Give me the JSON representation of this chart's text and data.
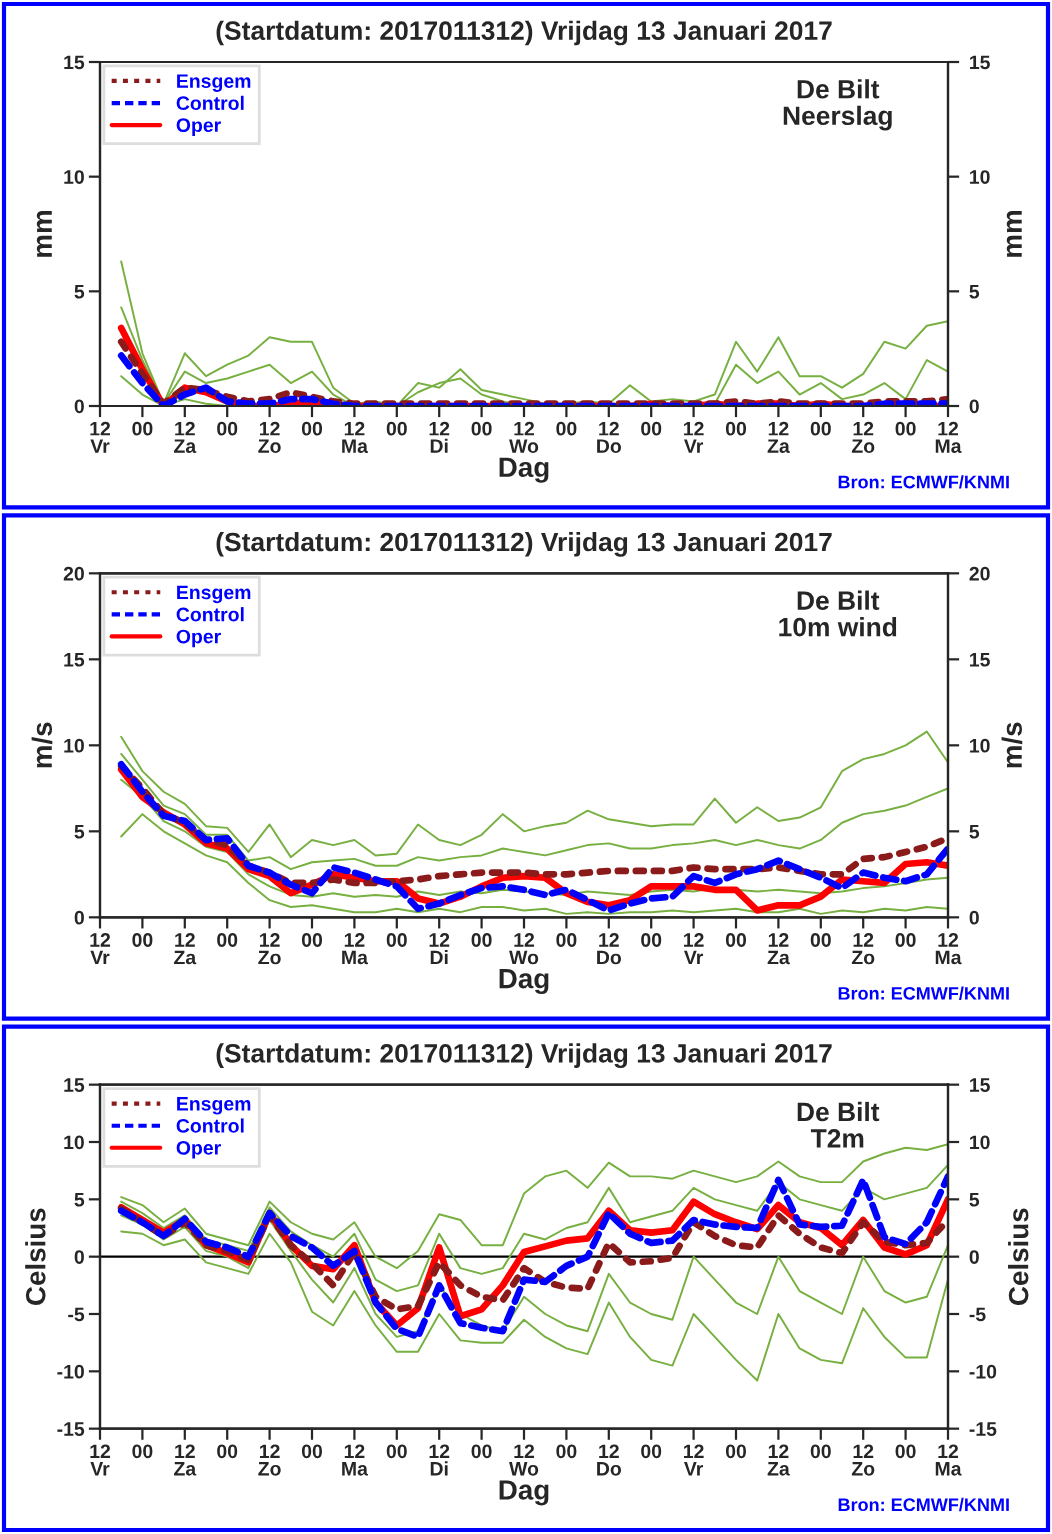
{
  "chart_data": [
    {
      "type": "line",
      "title": "(Startdatum: 2017011312) Vrijdag 13 Januari 2017",
      "xlabel": "Dag",
      "ylabel": "mm",
      "y2label": "mm",
      "annotations": [
        "De Bilt\nNeerslag",
        "Bron: ECMWF/KNMI"
      ],
      "categories": [
        "12\nVr",
        null,
        "00",
        null,
        "12\nZa",
        null,
        "00",
        null,
        "12\nZo",
        null,
        "00",
        null,
        "12\nMa",
        null,
        "00",
        null,
        "12\nDi",
        null,
        "00",
        null,
        "12\nWo",
        null,
        "00",
        null,
        "12\nDo",
        null,
        "00",
        null,
        "12\nVr",
        null,
        "00",
        null,
        "12\nZa",
        null,
        "00",
        null,
        "12\nZo",
        null,
        "00",
        null,
        "12\nMa"
      ],
      "ylim": [
        0,
        15
      ],
      "yticks": [
        0,
        5,
        10,
        15
      ],
      "y2lim": [
        0,
        15
      ],
      "y2ticks": [
        0,
        5,
        10,
        15
      ],
      "legend": "top left",
      "grid": false,
      "series": [
        {
          "color": "#77b041",
          "line_style": "solid",
          "values": [
            null,
            6.3,
            2.3,
            0.1,
            2.3,
            1.3,
            1.8,
            2.2,
            3.0,
            2.8,
            2.8,
            0.8,
            0.1,
            0.2,
            0,
            1.0,
            0.8,
            1.6,
            0.7,
            0.5,
            0.3,
            0.1,
            0.1,
            0.2,
            0.1,
            0.9,
            0.2,
            0.3,
            0.2,
            0.5,
            2.8,
            1.5,
            3.0,
            1.3,
            1.3,
            0.8,
            1.4,
            2.8,
            2.5,
            3.5,
            3.7
          ]
        },
        {
          "color": "#77b041",
          "line_style": "solid",
          "values": [
            null,
            4.3,
            2.0,
            0.1,
            1.5,
            1.0,
            1.2,
            1.5,
            1.8,
            1.0,
            1.5,
            0.5,
            0,
            0,
            0,
            0.6,
            1.0,
            1.2,
            0.5,
            0.2,
            0,
            0,
            0,
            0,
            0,
            0,
            0,
            0,
            0,
            0.1,
            1.8,
            1.0,
            1.5,
            0.5,
            1.0,
            0.3,
            0.5,
            1.0,
            0.3,
            2.0,
            1.5
          ]
        },
        {
          "color": "#77b041",
          "line_style": "solid",
          "values": [
            null,
            1.3,
            0.5,
            0,
            0.3,
            0.1,
            0,
            null,
            null,
            null,
            null,
            null,
            null,
            null,
            null,
            null,
            null,
            null,
            null,
            null,
            null,
            null,
            null,
            null,
            null,
            null,
            null,
            null,
            null,
            null,
            null,
            null,
            null,
            null,
            null,
            null,
            null,
            null,
            null,
            null,
            null
          ]
        },
        {
          "name": "Ensgem",
          "color": "#8b1a1a",
          "line_style": "dotted",
          "values": [
            null,
            2.8,
            1.4,
            0.1,
            0.8,
            0.7,
            0.4,
            0.2,
            0.3,
            0.6,
            0.4,
            0.2,
            0.1,
            0.1,
            0.1,
            0.1,
            0.1,
            0.1,
            0.1,
            0.1,
            0.1,
            0.1,
            0.1,
            0.1,
            0.1,
            0.1,
            0.1,
            0.1,
            0.1,
            0.1,
            0.2,
            0.1,
            0.2,
            0.1,
            0.1,
            0.1,
            0.1,
            0.2,
            0.2,
            0.2,
            0.3
          ]
        },
        {
          "name": "Control",
          "color": "#0000ff",
          "line_style": "dashed",
          "values": [
            null,
            2.2,
            1.0,
            0,
            0.5,
            0.8,
            0.2,
            0.1,
            0.1,
            0.3,
            0.3,
            0.1,
            0,
            null,
            null,
            null,
            null,
            null,
            null,
            null,
            null,
            null,
            null,
            null,
            null,
            null,
            null,
            null,
            null,
            null,
            null,
            null,
            null,
            null,
            null,
            null,
            0,
            0.1,
            0.1,
            0.1,
            0.1
          ]
        },
        {
          "name": "Oper",
          "color": "#ff0000",
          "line_style": "solid",
          "values": [
            null,
            3.4,
            1.6,
            0,
            0.8,
            0.6,
            0.2,
            0,
            0,
            0.1,
            0.2,
            0,
            0,
            0,
            0,
            0,
            0,
            0,
            0,
            0,
            0,
            0,
            0,
            0,
            0,
            0,
            0.1,
            0,
            0,
            0.1,
            0,
            0.1,
            0.1,
            0,
            0.1,
            0,
            0,
            0,
            0,
            0,
            0
          ]
        }
      ]
    },
    {
      "type": "line",
      "title": "(Startdatum: 2017011312) Vrijdag 13 Januari 2017",
      "xlabel": "Dag",
      "ylabel": "m/s",
      "y2label": "m/s",
      "annotations": [
        "De Bilt\n10m wind",
        "Bron: ECMWF/KNMI"
      ],
      "categories": [
        "12\nVr",
        null,
        "00",
        null,
        "12\nZa",
        null,
        "00",
        null,
        "12\nZo",
        null,
        "00",
        null,
        "12\nMa",
        null,
        "00",
        null,
        "12\nDi",
        null,
        "00",
        null,
        "12\nWo",
        null,
        "00",
        null,
        "12\nDo",
        null,
        "00",
        null,
        "12\nVr",
        null,
        "00",
        null,
        "12\nZa",
        null,
        "00",
        null,
        "12\nZo",
        null,
        "00",
        null,
        "12\nMa"
      ],
      "ylim": [
        0,
        20
      ],
      "yticks": [
        0,
        5,
        10,
        15,
        20
      ],
      "y2lim": [
        0,
        20
      ],
      "y2ticks": [
        0,
        5,
        10,
        15,
        20
      ],
      "legend": "top left",
      "grid": false,
      "series": [
        {
          "color": "#77b041",
          "line_style": "solid",
          "values": [
            null,
            10.5,
            8.5,
            7.3,
            6.6,
            5.3,
            5.2,
            3.8,
            5.4,
            3.5,
            4.5,
            4.2,
            4.5,
            3.6,
            3.7,
            5.4,
            4.5,
            4.2,
            4.8,
            6.0,
            5.0,
            5.3,
            5.5,
            6.2,
            5.7,
            5.5,
            5.3,
            5.4,
            5.4,
            6.9,
            5.5,
            6.4,
            5.6,
            5.8,
            6.4,
            8.5,
            9.2,
            9.5,
            10.0,
            10.8,
            9.0
          ]
        },
        {
          "color": "#77b041",
          "line_style": "solid",
          "values": [
            null,
            9.5,
            8.0,
            6.5,
            6.0,
            4.8,
            4.8,
            3.3,
            3.5,
            2.8,
            3.2,
            3.3,
            3.4,
            3.0,
            3.0,
            3.5,
            3.3,
            3.5,
            3.6,
            4.0,
            3.8,
            3.6,
            3.9,
            4.2,
            4.3,
            4.0,
            4.0,
            4.2,
            4.3,
            4.5,
            4.2,
            4.5,
            4.2,
            4.0,
            4.5,
            5.5,
            6.0,
            6.2,
            6.5,
            7.0,
            7.5
          ]
        },
        {
          "color": "#77b041",
          "line_style": "solid",
          "values": [
            null,
            8.0,
            7.0,
            5.6,
            5.0,
            4.1,
            3.8,
            2.5,
            1.8,
            1.3,
            1.2,
            1.4,
            1.2,
            1.3,
            1.2,
            1.5,
            1.3,
            1.5,
            1.4,
            1.6,
            1.5,
            1.4,
            1.3,
            1.5,
            1.4,
            1.3,
            1.5,
            1.6,
            1.5,
            1.7,
            1.6,
            1.5,
            1.6,
            1.5,
            1.4,
            1.5,
            1.7,
            1.8,
            2.0,
            2.2,
            2.3
          ]
        },
        {
          "color": "#77b041",
          "line_style": "solid",
          "values": [
            null,
            4.7,
            6.0,
            5.0,
            4.3,
            3.6,
            3.2,
            2.0,
            1.0,
            0.6,
            0.7,
            0.5,
            0.3,
            0.3,
            0.5,
            0.3,
            0.5,
            0.3,
            0.6,
            0.6,
            0.4,
            0.5,
            0.2,
            0.3,
            0.2,
            0.3,
            0.3,
            0.4,
            0.3,
            0.4,
            0.5,
            0.3,
            0.3,
            0.5,
            0.2,
            0.4,
            0.3,
            0.5,
            0.4,
            0.6,
            0.5
          ]
        },
        {
          "name": "Ensgem",
          "color": "#8b1a1a",
          "line_style": "dotted",
          "values": [
            null,
            8.8,
            7.5,
            6.0,
            5.5,
            4.5,
            4.2,
            3.0,
            2.6,
            2.0,
            2.0,
            2.2,
            2.0,
            2.0,
            2.1,
            2.2,
            2.4,
            2.5,
            2.6,
            2.6,
            2.6,
            2.5,
            2.5,
            2.6,
            2.7,
            2.7,
            2.7,
            2.7,
            2.9,
            2.8,
            2.8,
            2.8,
            2.9,
            2.7,
            2.5,
            2.5,
            3.4,
            3.5,
            3.8,
            4.1,
            4.6
          ]
        },
        {
          "name": "Control",
          "color": "#0000ff",
          "line_style": "dashed",
          "values": [
            null,
            8.9,
            7.3,
            5.9,
            5.6,
            4.5,
            4.6,
            3.0,
            2.6,
            1.9,
            1.4,
            2.9,
            2.6,
            2.2,
            1.8,
            0.5,
            0.8,
            1.3,
            1.7,
            1.8,
            1.6,
            1.3,
            1.6,
            1.0,
            0.4,
            0.8,
            1.1,
            1.2,
            2.4,
            2.0,
            2.5,
            2.8,
            3.3,
            2.8,
            2.3,
            1.7,
            2.6,
            2.3,
            2.1,
            2.5,
            4.0
          ]
        },
        {
          "name": "Oper",
          "color": "#ff0000",
          "line_style": "solid",
          "values": [
            null,
            8.6,
            7.0,
            6.1,
            5.4,
            4.3,
            4.0,
            2.8,
            2.4,
            1.4,
            1.9,
            2.5,
            2.3,
            2.1,
            2.1,
            1.1,
            0.8,
            1.2,
            1.8,
            2.3,
            2.4,
            2.3,
            1.4,
            0.9,
            0.7,
            1.0,
            1.8,
            1.8,
            1.8,
            1.6,
            1.6,
            0.4,
            0.7,
            0.7,
            1.2,
            2.2,
            2.1,
            2.0,
            3.1,
            3.2,
            3.0
          ]
        }
      ]
    },
    {
      "type": "line",
      "title": "(Startdatum: 2017011312) Vrijdag 13 Januari 2017",
      "xlabel": "Dag",
      "ylabel": "Celsius",
      "y2label": "Celsius",
      "annotations": [
        "De Bilt\nT2m",
        "Bron: ECMWF/KNMI"
      ],
      "categories": [
        "12\nVr",
        null,
        "00",
        null,
        "12\nZa",
        null,
        "00",
        null,
        "12\nZo",
        null,
        "00",
        null,
        "12\nMa",
        null,
        "00",
        null,
        "12\nDi",
        null,
        "00",
        null,
        "12\nWo",
        null,
        "00",
        null,
        "12\nDo",
        null,
        "00",
        null,
        "12\nVr",
        null,
        "00",
        null,
        "12\nZa",
        null,
        "00",
        null,
        "12\nZo",
        null,
        "00",
        null,
        "12\nMa"
      ],
      "ylim": [
        -15,
        15
      ],
      "yticks": [
        -15,
        -10,
        -5,
        0,
        5,
        10,
        15
      ],
      "y2lim": [
        -15,
        15
      ],
      "y2ticks": [
        -15,
        -10,
        -5,
        0,
        5,
        10,
        15
      ],
      "legend": "top left",
      "grid": false,
      "ref_lines": [
        {
          "axis": "y",
          "value": 0,
          "color": "#000000",
          "line_style": "solid"
        }
      ],
      "series": [
        {
          "color": "#77b041",
          "line_style": "solid",
          "values": [
            null,
            5.2,
            4.5,
            3,
            4.2,
            2,
            1.5,
            1,
            4.8,
            3,
            2,
            1.5,
            3,
            0,
            -1,
            0.5,
            3.7,
            3.2,
            1,
            1,
            5.5,
            7,
            7.5,
            6,
            8.2,
            7,
            7,
            6.8,
            7.5,
            7,
            6.5,
            7,
            8.3,
            7,
            6.5,
            6.5,
            8.3,
            9,
            9.5,
            9.3,
            9.8
          ]
        },
        {
          "color": "#77b041",
          "line_style": "solid",
          "values": [
            null,
            4.8,
            3.8,
            2.5,
            3.6,
            1.5,
            1,
            0.5,
            4.3,
            2.2,
            1,
            0,
            2,
            -2,
            -3,
            -2.5,
            2,
            -1,
            -1.5,
            -1,
            2,
            1.5,
            2.5,
            3,
            6,
            3,
            3.5,
            4,
            6,
            5,
            4.5,
            4,
            6.5,
            5,
            4.5,
            4,
            6,
            5,
            5.5,
            6,
            8
          ]
        },
        {
          "color": "#77b041",
          "line_style": "solid",
          "values": [
            null,
            3.6,
            2.8,
            1.5,
            2.6,
            0.5,
            0,
            -1,
            3.2,
            0.5,
            -2,
            -4,
            -1,
            -5,
            -7,
            -6.5,
            -2.5,
            -5,
            -6,
            -6.5,
            -3.5,
            -5,
            -6,
            -6.5,
            -1.5,
            -4,
            -5,
            -5.5,
            0,
            -2,
            -4,
            -5,
            0,
            -3,
            -4,
            -5,
            0,
            -3,
            -4,
            -3.5,
            1
          ]
        },
        {
          "color": "#77b041",
          "line_style": "solid",
          "values": [
            null,
            2.2,
            2,
            1,
            1.5,
            -0.5,
            -1,
            -1.5,
            2,
            -0.5,
            -4.8,
            -6,
            -3,
            -6,
            -8.3,
            -8.3,
            -5,
            -7.3,
            -7.5,
            -7.5,
            -5.5,
            -7,
            -8,
            -8.5,
            -4,
            -7,
            -9,
            -9.5,
            -5,
            -7,
            -9,
            -10.8,
            -5,
            -8,
            -9,
            -9.3,
            -4.5,
            -7,
            -8.8,
            -8.8,
            -2
          ]
        },
        {
          "name": "Ensgem",
          "color": "#8b1a1a",
          "line_style": "dotted",
          "values": [
            null,
            4.2,
            3.0,
            1.8,
            3.0,
            1.0,
            0.5,
            -0.3,
            3.6,
            1.0,
            -0.6,
            -2.5,
            0.4,
            -3.5,
            -4.6,
            -4.3,
            -0.5,
            -2.5,
            -3.5,
            -3.8,
            -1.0,
            -2.2,
            -2.7,
            -2.8,
            1.2,
            -0.5,
            -0.4,
            -0.1,
            3.0,
            1.8,
            1.0,
            0.8,
            3.6,
            2.0,
            0.8,
            0.3,
            3.0,
            1.3,
            1.0,
            1.2,
            3.2
          ]
        },
        {
          "name": "Control",
          "color": "#0000ff",
          "line_style": "dashed",
          "values": [
            null,
            4.0,
            3.0,
            1.8,
            3.3,
            1.3,
            0.8,
            0.0,
            3.8,
            1.8,
            0.8,
            -0.8,
            0.5,
            -4.0,
            -6.3,
            -7.0,
            -2.5,
            -5.8,
            -6.2,
            -6.5,
            -2.0,
            -2.2,
            -0.8,
            0.0,
            3.8,
            2.0,
            1.2,
            1.4,
            3.2,
            2.8,
            2.6,
            2.5,
            6.7,
            2.8,
            2.6,
            2.7,
            6.7,
            1.7,
            1.1,
            3.0,
            7.0
          ]
        },
        {
          "name": "Oper",
          "color": "#ff0000",
          "line_style": "solid",
          "values": [
            null,
            4.3,
            3.2,
            2.1,
            3.2,
            1.0,
            0.3,
            -0.5,
            3.8,
            1.0,
            -0.8,
            -1.1,
            1.0,
            -4.0,
            -6.0,
            -4.5,
            0.8,
            -5.2,
            -4.6,
            -2.5,
            0.4,
            0.9,
            1.4,
            1.6,
            4.0,
            2.3,
            2.1,
            2.3,
            4.8,
            3.7,
            3.0,
            2.4,
            4.5,
            3.0,
            2.5,
            1.0,
            3.2,
            0.8,
            0.2,
            1.0,
            5.0
          ]
        }
      ]
    }
  ]
}
